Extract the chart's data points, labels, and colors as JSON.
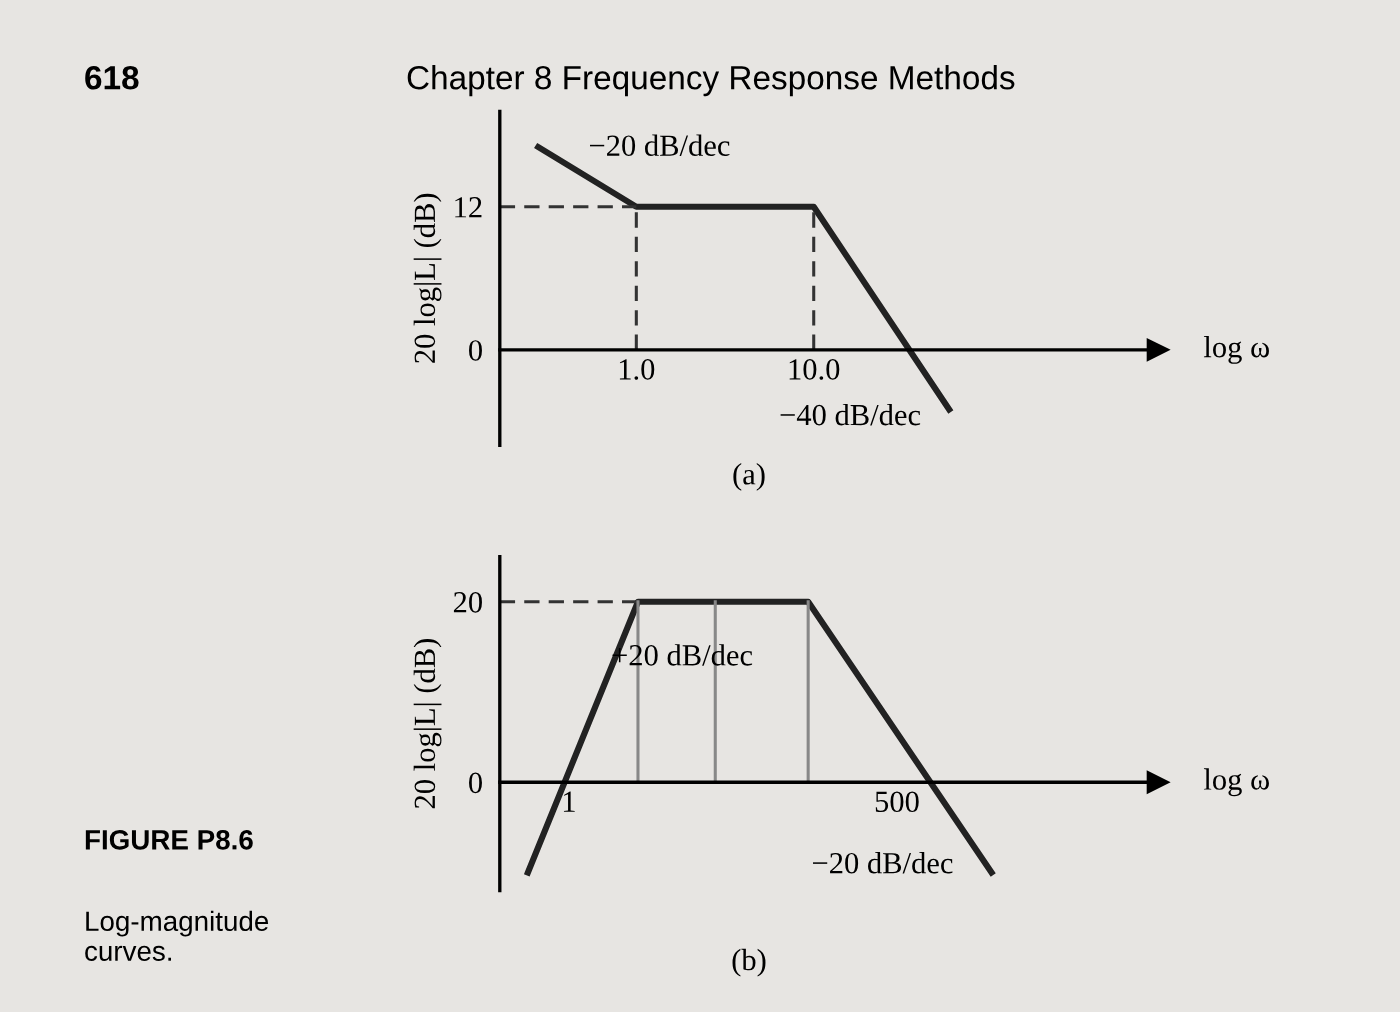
{
  "chart_data": [
    {
      "type": "line",
      "xlabel": "log ω",
      "ylabel": "20 log|L| (dB)",
      "log": "x",
      "x": [
        0.28,
        1,
        10,
        58
      ],
      "series": [
        {
          "color": "#222222",
          "values": [
            17,
            12,
            12,
            -5
          ]
        }
      ],
      "xlim": [
        0.17,
        870
      ],
      "ylim": [
        -8,
        20
      ],
      "xticks": [
        {
          "value": 1,
          "label": "1.0"
        },
        {
          "value": 10,
          "label": "10.0"
        }
      ],
      "yticks": [
        0,
        12
      ],
      "ref_lines": [
        {
          "axis": "y",
          "value": 12,
          "line_style": "dashed",
          "color": "#333333"
        },
        {
          "axis": "x",
          "value": 1,
          "line_style": "dashed",
          "color": "#333333"
        },
        {
          "axis": "x",
          "value": 10,
          "line_style": "dashed",
          "color": "#333333"
        }
      ],
      "annotations": [
        "618",
        "Chapter 8 Frequency Response Methods",
        "(a)",
        {
          "text": "−20 dB/dec",
          "x": 0.5,
          "y": 14.8
        },
        {
          "text": "−40 dB/dec",
          "x": 50,
          "y": -3.6
        }
      ],
      "grid": false,
      "legend": false
    },
    {
      "type": "line",
      "xlabel": "log ω",
      "ylabel": "20 log|L| (dB)",
      "log": "x",
      "x": [
        0.46,
        3.7,
        93,
        3000
      ],
      "series": [
        {
          "color": "#222222",
          "values": [
            -10,
            20,
            20,
            -10
          ]
        }
      ],
      "xlim": [
        0.27,
        70000
      ],
      "ylim": [
        -12,
        25
      ],
      "xticks": [
        1,
        500
      ],
      "yticks": [
        0,
        20
      ],
      "ref_lines": [
        {
          "axis": "y",
          "value": 20,
          "line_style": "dashed",
          "color": "#333333"
        },
        {
          "axis": "x",
          "value": 3.7,
          "line_style": "solid",
          "color": "#888888"
        },
        {
          "axis": "x",
          "value": 16,
          "line_style": "solid",
          "color": "#888888"
        },
        {
          "axis": "x",
          "value": 93,
          "line_style": "solid",
          "color": "#888888"
        }
      ],
      "annotations": [
        "(b)",
        "FIGURE P8.6",
        "Log-magnitude\ncurves.",
        {
          "text": "+20 dB/dec",
          "x": 2,
          "y": 11
        },
        {
          "text": "−20 dB/dec",
          "x": 2000,
          "y": -6.5
        }
      ],
      "grid": false,
      "legend": false
    }
  ]
}
